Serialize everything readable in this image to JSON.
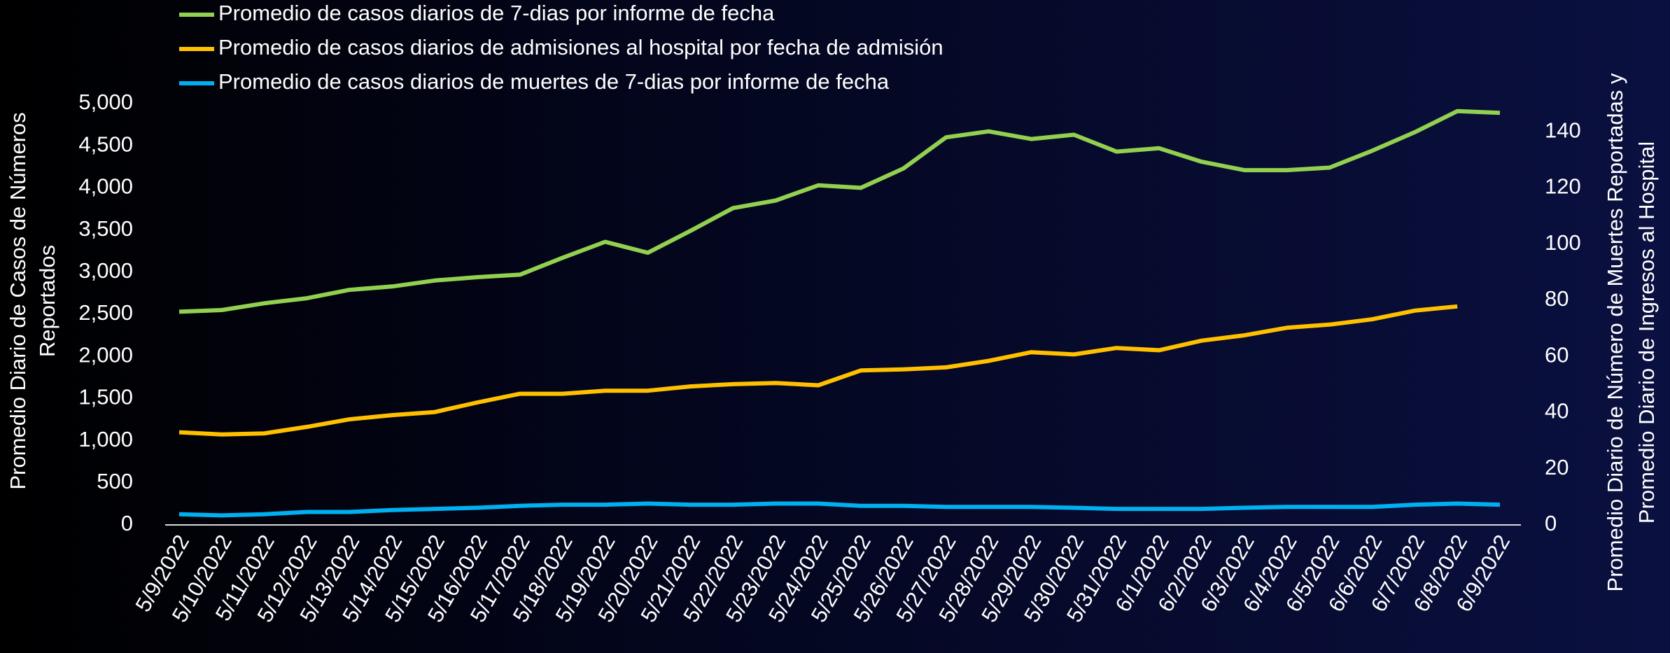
{
  "chart_data": {
    "type": "line",
    "categories": [
      "5/9/2022",
      "5/10/2022",
      "5/11/2022",
      "5/12/2022",
      "5/13/2022",
      "5/14/2022",
      "5/15/2022",
      "5/16/2022",
      "5/17/2022",
      "5/18/2022",
      "5/19/2022",
      "5/20/2022",
      "5/21/2022",
      "5/22/2022",
      "5/23/2022",
      "5/24/2022",
      "5/25/2022",
      "5/26/2022",
      "5/27/2022",
      "5/28/2022",
      "5/29/2022",
      "5/30/2022",
      "5/31/2022",
      "6/1/2022",
      "6/2/2022",
      "6/3/2022",
      "6/4/2022",
      "6/5/2022",
      "6/6/2022",
      "6/7/2022",
      "6/8/2022",
      "6/9/2022"
    ],
    "series": [
      {
        "name": "Promedio de casos diarios de 7-dias por informe de fecha",
        "color": "#92d050",
        "values": [
          2530,
          2550,
          2630,
          2690,
          2790,
          2830,
          2900,
          2940,
          2970,
          3170,
          3360,
          3230,
          3490,
          3760,
          3850,
          4030,
          4000,
          4230,
          4600,
          4670,
          4580,
          4630,
          4430,
          4470,
          4310,
          4210,
          4210,
          4240,
          4440,
          4660,
          4910,
          4890
        ]
      },
      {
        "name": "Promedio de casos diarios de admisiones al hospital por fecha de admisión",
        "color": "#ffc000",
        "axis": "y2",
        "values": [
          33,
          32.2,
          32.6,
          34.9,
          37.6,
          39.1,
          40.2,
          43.6,
          46.7,
          46.7,
          47.8,
          47.8,
          49.3,
          50.1,
          50.5,
          49.7,
          55,
          55.4,
          56.1,
          58.4,
          61.5,
          60.7,
          63,
          62.2,
          65.6,
          67.5,
          70.2,
          71.3,
          73.2,
          76.3,
          77.8,
          null
        ]
      },
      {
        "name": "Promedio de casos diarios de muertes de 7-dias por informe de fecha",
        "color": "#00b0f0",
        "axis": "y2",
        "values": [
          3.8,
          3.4,
          3.8,
          4.6,
          4.6,
          5.3,
          5.7,
          6.1,
          6.8,
          7.2,
          7.2,
          7.6,
          7.2,
          7.2,
          7.6,
          7.6,
          6.8,
          6.8,
          6.4,
          6.4,
          6.4,
          6.1,
          5.7,
          5.7,
          5.7,
          6.1,
          6.4,
          6.4,
          6.4,
          7.2,
          7.6,
          7.2
        ]
      }
    ],
    "ylabel": [
      "Promedio Diario de Casos de Números",
      "Reportados"
    ],
    "y2label": [
      "Promedio Diario de Número de Muertes Reportadas y",
      "Promedio  Diario de Ingresos al Hospital"
    ],
    "ylim": [
      0,
      5000
    ],
    "yticks": [
      0,
      500,
      {
        "value": 1000,
        "label": "1,000"
      },
      {
        "value": 1500,
        "label": "1,500"
      },
      {
        "value": 2000,
        "label": "2,000"
      },
      {
        "value": 2500,
        "label": "2,500"
      },
      {
        "value": 3000,
        "label": "3,000"
      },
      {
        "value": 3500,
        "label": "3,500"
      },
      {
        "value": 4000,
        "label": "4,000"
      },
      {
        "value": 4500,
        "label": "4,500"
      },
      {
        "value": 5000,
        "label": "5,000"
      }
    ],
    "y2lim": [
      0,
      150
    ],
    "y2ticks": [
      0,
      20,
      40,
      60,
      80,
      100,
      120,
      140
    ],
    "legend": "top-left",
    "grid": false
  }
}
